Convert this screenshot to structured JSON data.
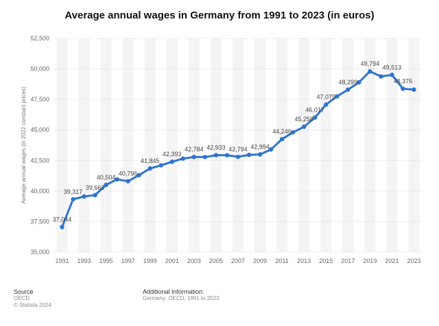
{
  "chart_data": {
    "type": "line",
    "title": "Average annual wages in Germany from 1991 to 2023 (in euros)",
    "ylabel": "Average annual wages (in 2022 constant prices)",
    "xlabel": "",
    "ylim": [
      35000,
      52500
    ],
    "y_ticks": [
      "35,000",
      "37,500",
      "40,000",
      "42,500",
      "45,000",
      "47,500",
      "50,000",
      "52,500"
    ],
    "x_ticks": [
      "1991",
      "1993",
      "1995",
      "1997",
      "1999",
      "2001",
      "2003",
      "2005",
      "2007",
      "2009",
      "2011",
      "2013",
      "2015",
      "2017",
      "2019",
      "2021",
      "2023"
    ],
    "grid": true,
    "x": [
      1991,
      1992,
      1993,
      1994,
      1995,
      1996,
      1997,
      1998,
      1999,
      2000,
      2001,
      2002,
      2003,
      2004,
      2005,
      2006,
      2007,
      2008,
      2009,
      2010,
      2011,
      2012,
      2013,
      2014,
      2015,
      2016,
      2017,
      2018,
      2019,
      2020,
      2021,
      2022,
      2023
    ],
    "values": [
      37044,
      39317,
      39550,
      39663,
      40504,
      40950,
      40796,
      41300,
      41845,
      42100,
      42393,
      42650,
      42784,
      42780,
      42933,
      42930,
      42794,
      42960,
      42994,
      43400,
      44246,
      44800,
      45258,
      46017,
      47075,
      47750,
      48299,
      48900,
      49794,
      49380,
      49513,
      48376,
      48300
    ],
    "data_labels": {
      "1991": "37,044",
      "1992": "39,317",
      "1994": "39,663",
      "1995": "40,504",
      "1997": "40,796",
      "1999": "41,845",
      "2001": "42,393",
      "2003": "42,784",
      "2005": "42,933",
      "2007": "42,794",
      "2009": "42,994",
      "2011": "44,246",
      "2013": "45,258",
      "2014": "46,017",
      "2015": "47,075",
      "2017": "48,299",
      "2019": "49,794",
      "2021": "49,513",
      "2022": "48,376"
    },
    "line_color": "#2f74d0"
  },
  "footer": {
    "source_heading": "Source",
    "source_lines": [
      "OECD",
      "© Statista 2024"
    ],
    "info_heading": "Additional Information:",
    "info_line": "Germany; OECD; 1991 to 2023"
  }
}
